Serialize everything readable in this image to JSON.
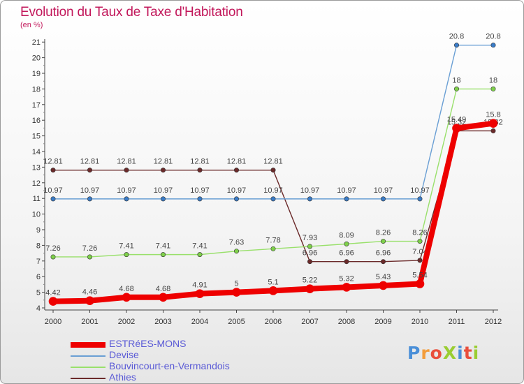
{
  "title": "Evolution du Taux de Taxe d'Habitation",
  "subtitle": "(en %)",
  "logo": {
    "text": "ProXiti",
    "colors": [
      "#4a8fd8",
      "#f39c3a",
      "#e94e3c",
      "#9acd32",
      "#4a8fd8",
      "#e94e3c",
      "#9acd32"
    ]
  },
  "chart_data": {
    "type": "line",
    "x": [
      "2000",
      "2001",
      "2002",
      "2003",
      "2004",
      "2005",
      "2006",
      "2007",
      "2008",
      "2009",
      "2010",
      "2011",
      "2012"
    ],
    "ylim": [
      4,
      21
    ],
    "yticks": [
      "4",
      "5",
      "6",
      "7",
      "8",
      "9",
      "10",
      "11",
      "12",
      "13",
      "14",
      "15",
      "16",
      "17",
      "18",
      "19",
      "20",
      "21"
    ],
    "grid": false,
    "legend_position": "bottom-left",
    "series": [
      {
        "name": "Athies",
        "color": "#6b2a2a",
        "marker_color": "#6b2a2a",
        "width": 1.4,
        "values": [
          12.81,
          12.81,
          12.81,
          12.81,
          12.81,
          12.81,
          12.81,
          6.96,
          6.96,
          6.96,
          7.04,
          15.32,
          15.32
        ],
        "labels": [
          "12.81",
          "12.81",
          "12.81",
          "12.81",
          "12.81",
          "12.81",
          "12.81",
          "6.96",
          "6.96",
          "6.96",
          "7.04",
          "15.32",
          "15.32"
        ]
      },
      {
        "name": "Devise",
        "color": "#6a9fd4",
        "marker_color": "#3a7cc8",
        "width": 1.4,
        "values": [
          10.97,
          10.97,
          10.97,
          10.97,
          10.97,
          10.97,
          10.97,
          10.97,
          10.97,
          10.97,
          10.97,
          20.8,
          20.8
        ],
        "labels": [
          "10.97",
          "10.97",
          "10.97",
          "10.97",
          "10.97",
          "10.97",
          "10.97",
          "10.97",
          "10.97",
          "10.97",
          "10.97",
          "20.8",
          "20.8"
        ]
      },
      {
        "name": "Bouvincourt-en-Vermandois",
        "color": "#99e06b",
        "marker_color": "#7ed04a",
        "width": 1.4,
        "values": [
          7.26,
          7.26,
          7.41,
          7.41,
          7.41,
          7.63,
          7.78,
          7.93,
          8.09,
          8.26,
          8.26,
          18,
          18
        ],
        "labels": [
          "7.26",
          "7.26",
          "7.41",
          "7.41",
          "7.41",
          "7.63",
          "7.78",
          "7.93",
          "8.09",
          "8.26",
          "8.26",
          "18",
          "18"
        ]
      },
      {
        "name": "ESTRéES-MONS",
        "color": "#ee0000",
        "marker_color": "#ee0000",
        "width": 8,
        "values": [
          4.42,
          4.46,
          4.68,
          4.68,
          4.91,
          5,
          5.1,
          5.22,
          5.32,
          5.43,
          5.54,
          15.49,
          15.8
        ],
        "labels": [
          "4.42",
          "4.46",
          "4.68",
          "4.68",
          "4.91",
          "5",
          "5.1",
          "5.22",
          "5.32",
          "5.43",
          "5.54",
          "15.49",
          "15.8"
        ]
      }
    ],
    "legend_order": [
      "ESTRéES-MONS",
      "Devise",
      "Bouvincourt-en-Vermandois",
      "Athies"
    ]
  }
}
